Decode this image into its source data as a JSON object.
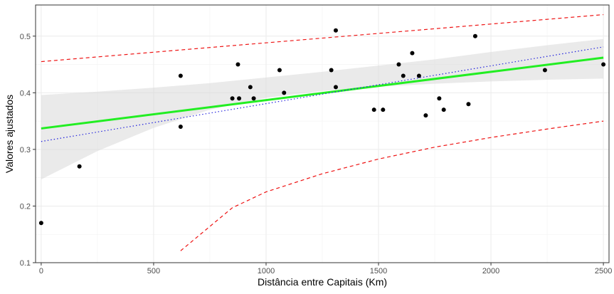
{
  "chart_data": {
    "type": "scatter",
    "xlabel": "Distância entre Capitais (Km)",
    "ylabel": "Valores ajustados",
    "xlim": [
      -25,
      2525
    ],
    "ylim": [
      0.1,
      0.555
    ],
    "x_ticks": [
      0,
      500,
      1000,
      1500,
      2000,
      2500
    ],
    "x_tick_labels": [
      "0",
      "500",
      "1000",
      "1500",
      "2000",
      "2500"
    ],
    "y_ticks": [
      0.1,
      0.2,
      0.3,
      0.4,
      0.5
    ],
    "y_tick_labels": [
      "0.1",
      "0.2",
      "0.3",
      "0.4",
      "0.5"
    ],
    "grid": true,
    "points": [
      {
        "x": 0,
        "y": 0.17
      },
      {
        "x": 170,
        "y": 0.27
      },
      {
        "x": 620,
        "y": 0.43
      },
      {
        "x": 620,
        "y": 0.34
      },
      {
        "x": 850,
        "y": 0.39
      },
      {
        "x": 875,
        "y": 0.45
      },
      {
        "x": 880,
        "y": 0.39
      },
      {
        "x": 930,
        "y": 0.41
      },
      {
        "x": 945,
        "y": 0.39
      },
      {
        "x": 1060,
        "y": 0.44
      },
      {
        "x": 1080,
        "y": 0.4
      },
      {
        "x": 1290,
        "y": 0.44
      },
      {
        "x": 1310,
        "y": 0.51
      },
      {
        "x": 1310,
        "y": 0.41
      },
      {
        "x": 1480,
        "y": 0.37
      },
      {
        "x": 1520,
        "y": 0.37
      },
      {
        "x": 1590,
        "y": 0.45
      },
      {
        "x": 1610,
        "y": 0.43
      },
      {
        "x": 1650,
        "y": 0.47
      },
      {
        "x": 1680,
        "y": 0.43
      },
      {
        "x": 1710,
        "y": 0.36
      },
      {
        "x": 1770,
        "y": 0.39
      },
      {
        "x": 1790,
        "y": 0.37
      },
      {
        "x": 1900,
        "y": 0.38
      },
      {
        "x": 1930,
        "y": 0.5
      },
      {
        "x": 2240,
        "y": 0.44
      },
      {
        "x": 2500,
        "y": 0.45
      }
    ],
    "series": [
      {
        "kind": "fit_line",
        "color": "#22ee22",
        "x": [
          0,
          2500
        ],
        "y": [
          0.337,
          0.462
        ]
      },
      {
        "kind": "confidence_band",
        "color": "#d9d9d9",
        "x": [
          0,
          250,
          500,
          750,
          1000,
          1250,
          1500,
          1750,
          2000,
          2250,
          2500
        ],
        "lower": [
          0.247,
          0.297,
          0.338,
          0.37,
          0.391,
          0.403,
          0.411,
          0.416,
          0.42,
          0.423,
          0.425
        ],
        "upper": [
          0.396,
          0.402,
          0.409,
          0.417,
          0.427,
          0.437,
          0.448,
          0.459,
          0.472,
          0.484,
          0.495
        ]
      },
      {
        "kind": "dotted_line",
        "color": "#2222dd",
        "x": [
          0,
          2500
        ],
        "y": [
          0.314,
          0.481
        ]
      },
      {
        "kind": "dashed_line",
        "color": "#ee1111",
        "x": [
          0,
          2500
        ],
        "y": [
          0.455,
          0.538
        ]
      },
      {
        "kind": "dashed_line",
        "color": "#ee1111",
        "x": [
          620,
          850,
          1000,
          1250,
          1500,
          1750,
          2000,
          2250,
          2500
        ],
        "y": [
          0.121,
          0.197,
          0.225,
          0.257,
          0.283,
          0.304,
          0.321,
          0.336,
          0.35
        ]
      }
    ]
  }
}
